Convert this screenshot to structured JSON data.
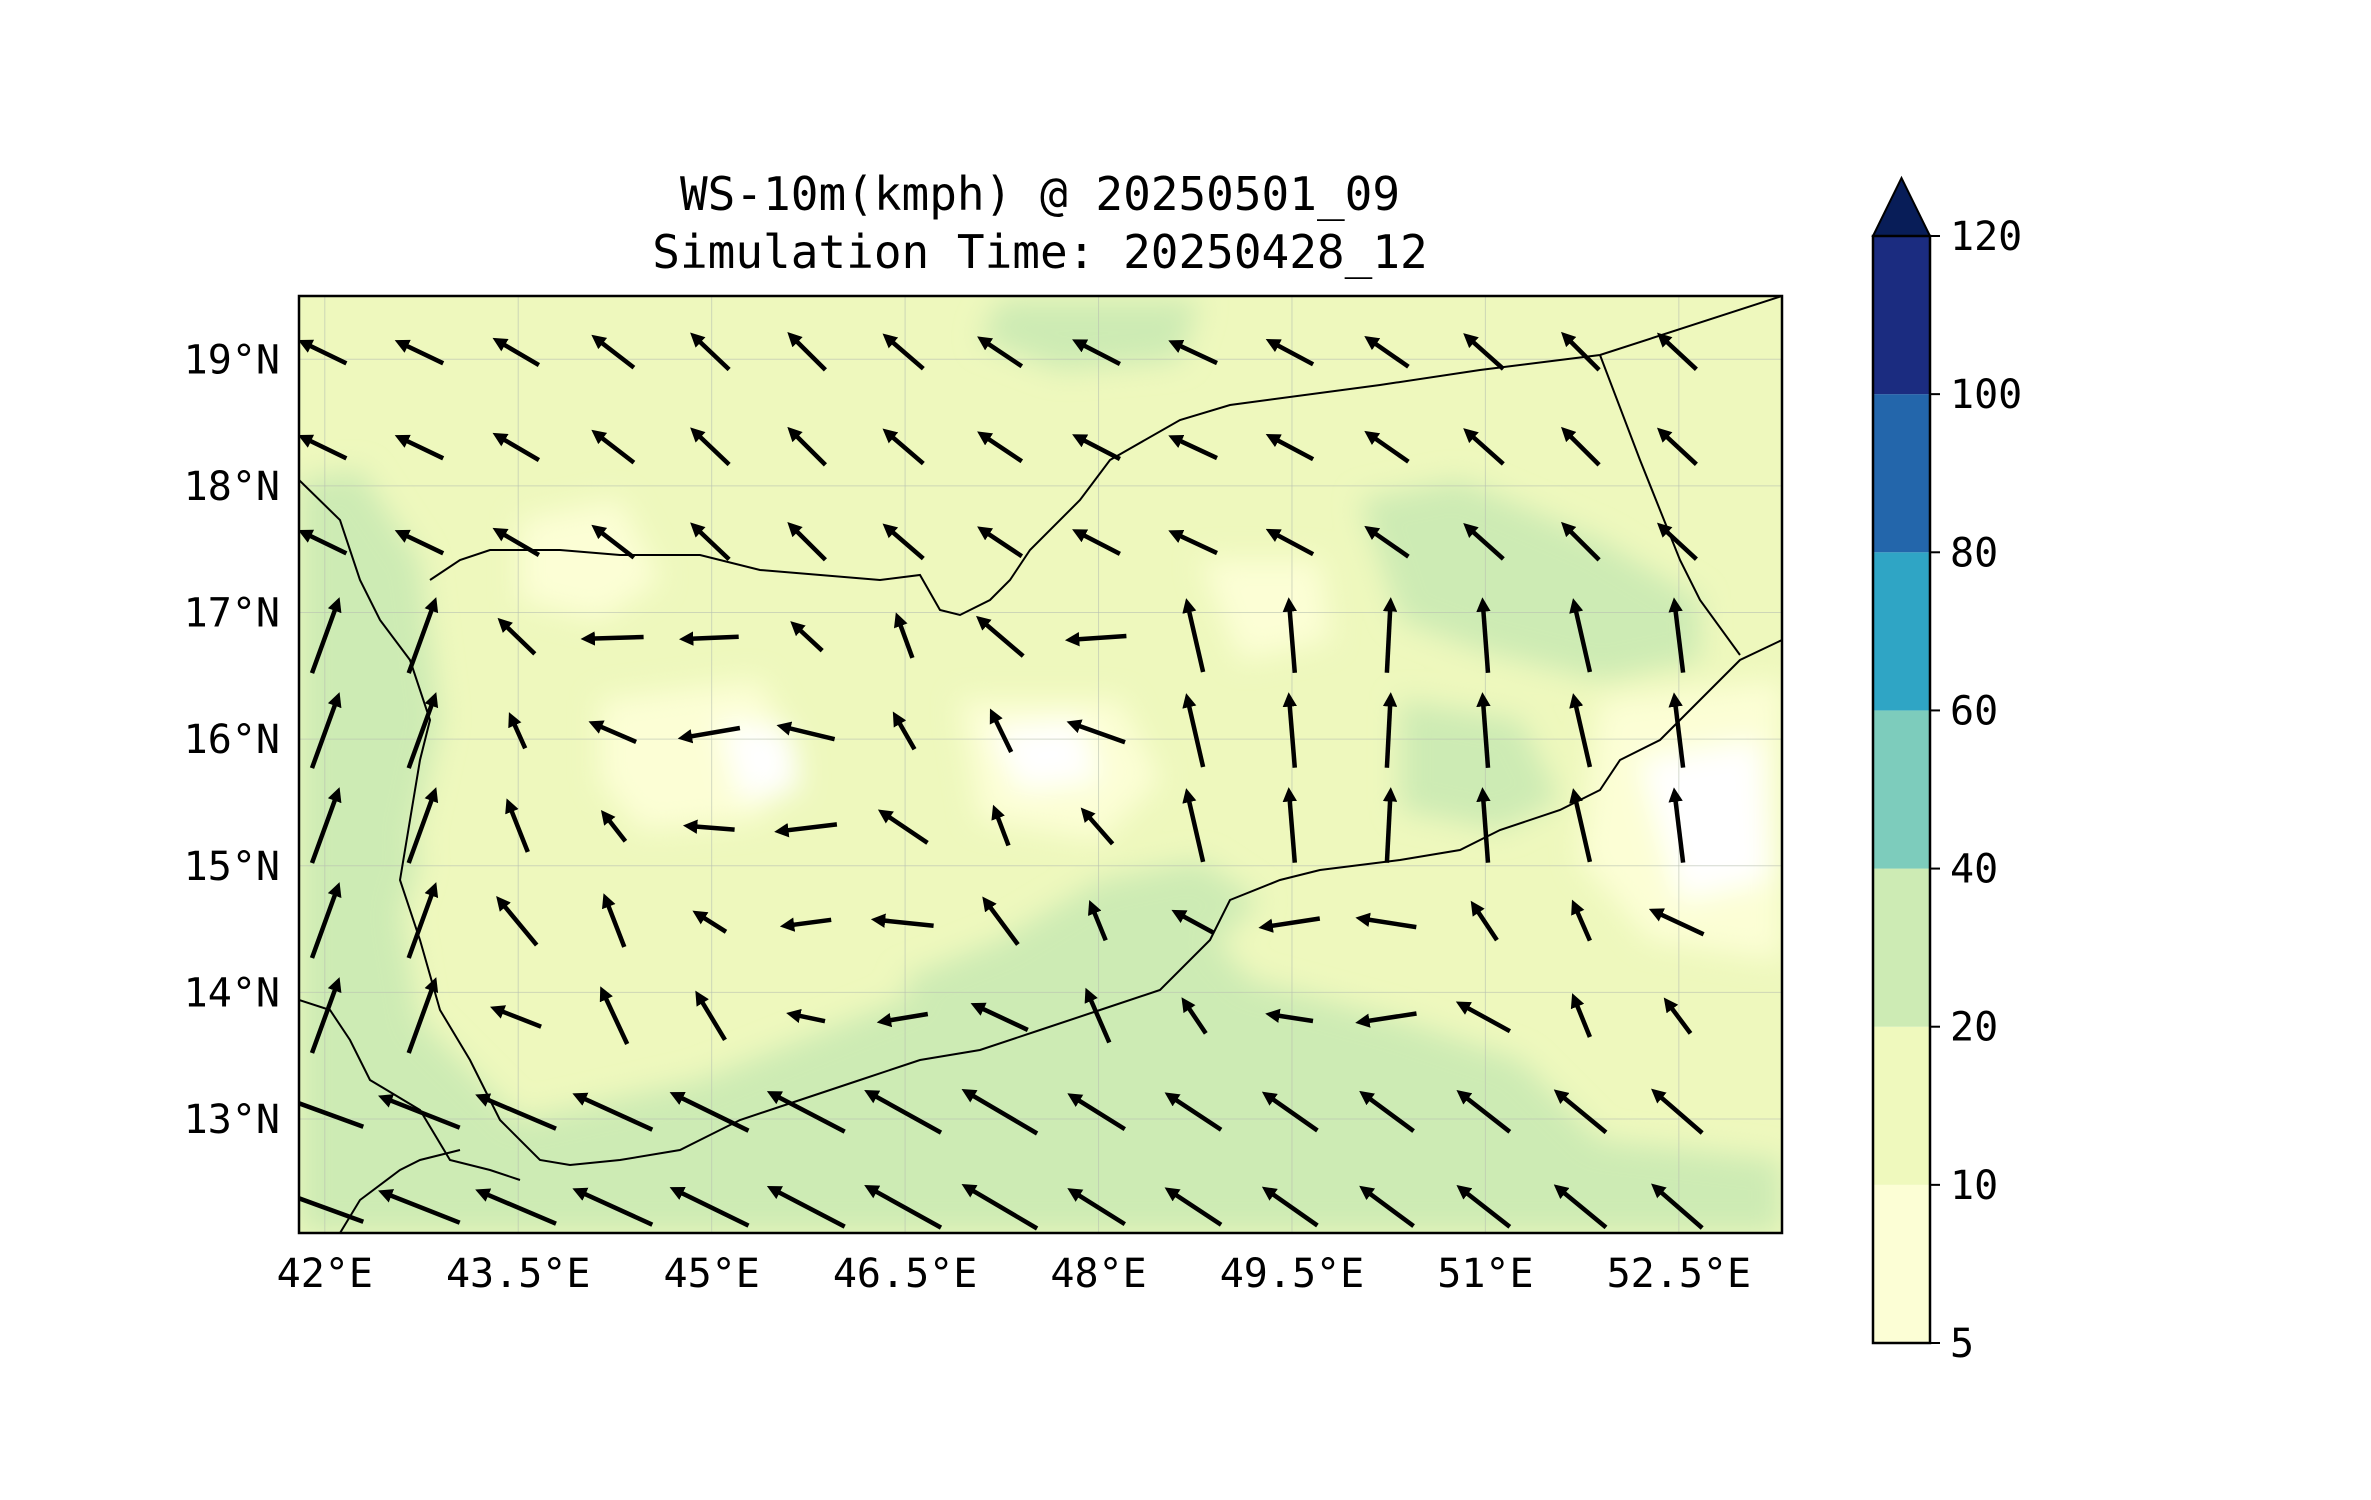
{
  "title": {
    "line1": "WS-10m(kmph) @ 20250501_09",
    "line2": "Simulation Time: 20250428_12"
  },
  "map": {
    "lon_range": [
      41.8,
      53.3
    ],
    "lat_range": [
      12.1,
      19.5
    ],
    "lon_ticks": [
      {
        "value": 42.0,
        "label": "42°E"
      },
      {
        "value": 43.5,
        "label": "43.5°E"
      },
      {
        "value": 45.0,
        "label": "45°E"
      },
      {
        "value": 46.5,
        "label": "46.5°E"
      },
      {
        "value": 48.0,
        "label": "48°E"
      },
      {
        "value": 49.5,
        "label": "49.5°E"
      },
      {
        "value": 51.0,
        "label": "51°E"
      },
      {
        "value": 52.5,
        "label": "52.5°E"
      }
    ],
    "lat_ticks": [
      {
        "value": 19.0,
        "label": "19°N"
      },
      {
        "value": 18.0,
        "label": "18°N"
      },
      {
        "value": 17.0,
        "label": "17°N"
      },
      {
        "value": 16.0,
        "label": "16°N"
      },
      {
        "value": 15.0,
        "label": "15°N"
      },
      {
        "value": 14.0,
        "label": "14°N"
      },
      {
        "value": 13.0,
        "label": "13°N"
      }
    ],
    "background_color": "#eef8bd",
    "grid": true,
    "coastline_color": "#000000"
  },
  "colorbar": {
    "levels": [
      {
        "label": "5"
      },
      {
        "label": "10"
      },
      {
        "label": "20"
      },
      {
        "label": "40"
      },
      {
        "label": "60"
      },
      {
        "label": "80"
      },
      {
        "label": "100"
      },
      {
        "label": "120"
      }
    ],
    "colors": [
      "#fcfed5",
      "#eff9bd",
      "#cdebb4",
      "#7dccbc",
      "#2fa5c5",
      "#2366ab",
      "#1b2c80"
    ],
    "extend_color": "#081d58",
    "extend": "max",
    "unit": "kmph"
  }
}
